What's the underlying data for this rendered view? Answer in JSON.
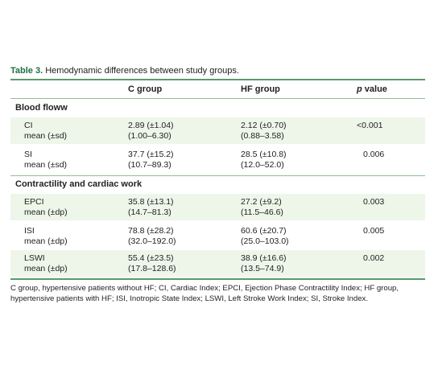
{
  "caption": {
    "label": "Table 3.",
    "text": "Hemodynamic differences between study groups."
  },
  "columns": {
    "group1": "C group",
    "group2": "HF group",
    "pvalue_italic": "p",
    "pvalue_rest": " value"
  },
  "sections": [
    {
      "title": "Blood floww"
    },
    {
      "title": "Contractility and cardiac work"
    }
  ],
  "rows": [
    {
      "name": "CI",
      "stat": "mean (±sd)",
      "c_mean": "2.89 (±1.04)",
      "c_range": "(1.00–6.30)",
      "hf_mean": "2.12 (±0.70)",
      "hf_range": "(0.88–3.58)",
      "p": "<0.001"
    },
    {
      "name": "SI",
      "stat": "mean (±sd)",
      "c_mean": "37.7 (±15.2)",
      "c_range": "(10.7–89.3)",
      "hf_mean": "28.5 (±10.8)",
      "hf_range": "(12.0–52.0)",
      "p": "0.006"
    },
    {
      "name": "EPCI",
      "stat": "mean (±dp)",
      "c_mean": "35.8 (±13.1)",
      "c_range": "(14.7–81.3)",
      "hf_mean": "27.2 (±9.2)",
      "hf_range": "(11.5–46.6)",
      "p": "0.003"
    },
    {
      "name": "ISI",
      "stat": "mean (±dp)",
      "c_mean": "78.8 (±28.2)",
      "c_range": "(32.0–192.0)",
      "hf_mean": "60.6 (±20.7)",
      "hf_range": "(25.0–103.0)",
      "p": "0.005"
    },
    {
      "name": "LSWI",
      "stat": "mean (±dp)",
      "c_mean": "55.4 (±23.5)",
      "c_range": "(17.8–128.6)",
      "hf_mean": "38.9 (±16.6)",
      "hf_range": "(13.5–74.9)",
      "p": "0.002"
    }
  ],
  "footnote": "C group, hypertensive patients without HF; CI, Cardiac Index; EPCI, Ejection Phase Contractility Index; HF group, hypertensive patients with HF; ISI, Inotropic State Index; LSWI, Left Stroke Work Index; SI, Stroke Index.",
  "colors": {
    "accent": "#1e6e45",
    "rule": "#5a9a6a",
    "shade": "#eef6ea"
  }
}
